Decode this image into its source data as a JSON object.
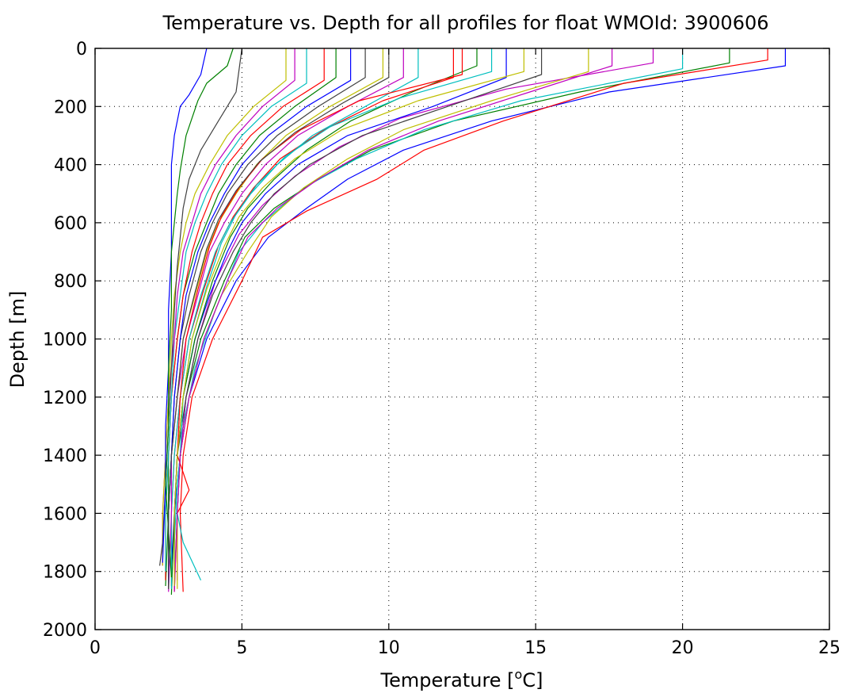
{
  "chart_data": {
    "type": "line",
    "title": "Temperature vs. Depth for all profiles for float WMOId: 3900606",
    "xlabel_text": "Temperature [",
    "xlabel_superscript": "o",
    "xlabel_suffix": "C]",
    "ylabel": "Depth [m]",
    "xlim": [
      0,
      25
    ],
    "ylim": [
      0,
      2000
    ],
    "y_reversed": true,
    "xticks": [
      0,
      5,
      10,
      15,
      20,
      25
    ],
    "yticks": [
      0,
      200,
      400,
      600,
      800,
      1000,
      1200,
      1400,
      1600,
      1800,
      2000
    ],
    "xtick_labels": [
      "0",
      "5",
      "10",
      "15",
      "20",
      "25"
    ],
    "ytick_labels": [
      "0",
      "200",
      "400",
      "600",
      "800",
      "1000",
      "1200",
      "1400",
      "1600",
      "1800",
      "2000"
    ],
    "grid": true,
    "legend": "none",
    "colors": [
      "#0000ff",
      "#008000",
      "#ff0000",
      "#00bfbf",
      "#bf00bf",
      "#bfbf00",
      "#404040"
    ],
    "series": [
      {
        "depth": [
          0,
          60,
          150,
          250,
          350,
          450,
          550,
          650,
          800,
          1000,
          1200,
          1400,
          1600,
          1780
        ],
        "temperature": [
          23.5,
          23.5,
          17.5,
          13.5,
          10.5,
          8.6,
          7.2,
          5.9,
          4.8,
          3.8,
          3.2,
          2.9,
          2.7,
          2.6
        ]
      },
      {
        "depth": [
          0,
          50,
          150,
          250,
          350,
          450,
          550,
          650,
          800,
          1000,
          1200,
          1400,
          1600,
          1840
        ],
        "temperature": [
          21.6,
          21.6,
          16.5,
          12.2,
          9.4,
          7.6,
          6.1,
          5.1,
          4.4,
          3.6,
          3.1,
          2.9,
          2.8,
          2.7
        ]
      },
      {
        "depth": [
          0,
          40,
          120,
          250,
          350,
          450,
          560,
          650,
          800,
          1000,
          1200,
          1400,
          1600,
          1870
        ],
        "temperature": [
          22.9,
          22.9,
          18.0,
          13.9,
          11.2,
          9.6,
          7.2,
          5.7,
          5.0,
          4.0,
          3.3,
          3.0,
          2.9,
          3.0
        ]
      },
      {
        "depth": [
          0,
          70,
          180,
          280,
          380,
          480,
          600,
          700,
          900,
          1100,
          1300,
          1500,
          1700,
          1860
        ],
        "temperature": [
          20.0,
          20.0,
          14.5,
          11.2,
          8.9,
          7.1,
          5.7,
          4.9,
          4.1,
          3.4,
          3.0,
          2.8,
          2.7,
          2.7
        ]
      },
      {
        "depth": [
          0,
          50,
          140,
          240,
          340,
          440,
          540,
          640,
          800,
          1000,
          1200,
          1400,
          1600,
          1830
        ],
        "temperature": [
          19.0,
          19.0,
          14.0,
          10.4,
          8.3,
          6.8,
          5.7,
          4.9,
          4.1,
          3.5,
          3.1,
          2.9,
          2.8,
          2.8
        ]
      },
      {
        "depth": [
          0,
          80,
          180,
          280,
          380,
          480,
          580,
          700,
          850,
          1000,
          1200,
          1400,
          1600,
          1860
        ],
        "temperature": [
          16.8,
          16.8,
          13.5,
          10.5,
          8.6,
          7.1,
          6.0,
          5.2,
          4.3,
          3.7,
          3.2,
          2.9,
          2.8,
          2.8
        ]
      },
      {
        "depth": [
          0,
          90,
          200,
          300,
          400,
          500,
          600,
          700,
          850,
          1000,
          1200,
          1400,
          1600,
          1840
        ],
        "temperature": [
          15.2,
          15.2,
          12.0,
          9.1,
          7.3,
          6.1,
          5.3,
          4.7,
          4.0,
          3.5,
          3.1,
          2.8,
          2.7,
          2.7
        ]
      },
      {
        "depth": [
          0,
          100,
          200,
          300,
          400,
          500,
          600,
          700,
          850,
          1000,
          1200,
          1400,
          1600,
          1820
        ],
        "temperature": [
          14.0,
          14.0,
          11.5,
          8.6,
          6.9,
          5.8,
          5.0,
          4.5,
          3.9,
          3.4,
          3.0,
          2.8,
          2.7,
          2.7
        ]
      },
      {
        "depth": [
          0,
          60,
          150,
          250,
          350,
          450,
          550,
          650,
          800,
          1000,
          1200,
          1400,
          1600,
          1880
        ],
        "temperature": [
          13.0,
          13.0,
          10.8,
          8.7,
          7.2,
          6.1,
          5.2,
          4.6,
          4.0,
          3.4,
          3.0,
          2.8,
          2.7,
          2.6
        ]
      },
      {
        "depth": [
          0,
          100,
          180,
          280,
          380,
          480,
          580,
          680,
          830,
          1000,
          1200,
          1400,
          1600,
          1850
        ],
        "temperature": [
          12.2,
          12.2,
          9.8,
          7.8,
          6.3,
          5.4,
          4.7,
          4.2,
          3.7,
          3.2,
          2.9,
          2.7,
          2.6,
          2.6
        ]
      },
      {
        "depth": [
          0,
          100,
          200,
          300,
          400,
          500,
          600,
          700,
          850,
          1000,
          1200,
          1400,
          1600,
          1860
        ],
        "temperature": [
          11.0,
          11.0,
          9.2,
          7.4,
          6.2,
          5.3,
          4.6,
          4.1,
          3.6,
          3.2,
          2.9,
          2.7,
          2.6,
          2.6
        ]
      },
      {
        "depth": [
          0,
          100,
          200,
          300,
          400,
          500,
          600,
          700,
          850,
          1000,
          1200,
          1400,
          1600,
          1870
        ],
        "temperature": [
          10.5,
          10.5,
          8.6,
          6.9,
          5.8,
          5.0,
          4.4,
          3.9,
          3.5,
          3.1,
          2.8,
          2.6,
          2.6,
          2.5
        ]
      },
      {
        "depth": [
          0,
          100,
          200,
          300,
          400,
          500,
          600,
          700,
          850,
          1000,
          1200,
          1400,
          1600,
          1850
        ],
        "temperature": [
          9.8,
          9.8,
          8.0,
          6.5,
          5.5,
          4.8,
          4.2,
          3.8,
          3.4,
          3.0,
          2.8,
          2.6,
          2.5,
          2.5
        ]
      },
      {
        "depth": [
          0,
          100,
          200,
          300,
          400,
          500,
          600,
          700,
          850,
          1000,
          1200,
          1400,
          1600,
          1860
        ],
        "temperature": [
          9.2,
          9.2,
          7.6,
          6.2,
          5.2,
          4.5,
          4.0,
          3.6,
          3.2,
          2.9,
          2.7,
          2.6,
          2.5,
          2.5
        ]
      },
      {
        "depth": [
          0,
          110,
          200,
          300,
          400,
          500,
          600,
          700,
          850,
          1000,
          1200,
          1400,
          1600,
          1840
        ],
        "temperature": [
          8.7,
          8.7,
          7.2,
          5.9,
          5.0,
          4.4,
          3.9,
          3.5,
          3.1,
          2.9,
          2.7,
          2.6,
          2.5,
          2.5
        ]
      },
      {
        "depth": [
          0,
          100,
          200,
          300,
          400,
          500,
          600,
          700,
          850,
          1000,
          1200,
          1400,
          1600,
          1850
        ],
        "temperature": [
          8.2,
          8.2,
          6.8,
          5.6,
          4.8,
          4.2,
          3.8,
          3.4,
          3.0,
          2.8,
          2.6,
          2.5,
          2.5,
          2.4
        ]
      },
      {
        "depth": [
          0,
          110,
          200,
          300,
          400,
          500,
          600,
          700,
          850,
          1000,
          1200,
          1400,
          1600,
          1830
        ],
        "temperature": [
          7.8,
          7.8,
          6.4,
          5.3,
          4.5,
          4.0,
          3.6,
          3.3,
          3.0,
          2.8,
          2.6,
          2.5,
          2.4,
          2.4
        ]
      },
      {
        "depth": [
          0,
          120,
          200,
          300,
          400,
          500,
          600,
          700,
          850,
          1000,
          1200,
          1400,
          1600,
          1800
        ],
        "temperature": [
          7.2,
          7.2,
          6.0,
          5.0,
          4.3,
          3.8,
          3.4,
          3.1,
          2.9,
          2.7,
          2.6,
          2.5,
          2.4,
          2.4
        ]
      },
      {
        "depth": [
          0,
          110,
          200,
          300,
          400,
          500,
          600,
          700,
          850,
          1000,
          1200,
          1400,
          1600,
          1780
        ],
        "temperature": [
          6.8,
          6.8,
          5.7,
          4.8,
          4.1,
          3.6,
          3.3,
          3.0,
          2.8,
          2.7,
          2.5,
          2.4,
          2.3,
          2.3
        ]
      },
      {
        "depth": [
          0,
          110,
          200,
          300,
          400,
          500,
          600,
          700,
          850,
          1000,
          1200,
          1400,
          1600,
          1780
        ],
        "temperature": [
          6.5,
          6.5,
          5.4,
          4.5,
          3.9,
          3.4,
          3.1,
          2.9,
          2.7,
          2.6,
          2.5,
          2.4,
          2.3,
          2.3
        ]
      },
      {
        "depth": [
          0,
          150,
          250,
          350,
          450,
          550,
          650,
          750,
          900,
          1100,
          1300,
          1500,
          1700,
          1780
        ],
        "temperature": [
          5.0,
          4.8,
          4.2,
          3.6,
          3.2,
          3.0,
          2.9,
          2.8,
          2.7,
          2.6,
          2.5,
          2.4,
          2.3,
          2.2
        ]
      },
      {
        "depth": [
          0,
          90,
          160,
          200,
          300,
          400,
          500,
          600,
          700,
          900,
          1100,
          1300,
          1500,
          1770
        ],
        "temperature": [
          3.8,
          3.6,
          3.2,
          2.9,
          2.7,
          2.6,
          2.6,
          2.6,
          2.6,
          2.5,
          2.5,
          2.4,
          2.4,
          2.3
        ]
      },
      {
        "depth": [
          0,
          60,
          120,
          180,
          300,
          420,
          500,
          600,
          700,
          900,
          1100,
          1300,
          1500,
          1820
        ],
        "temperature": [
          4.7,
          4.5,
          3.8,
          3.5,
          3.1,
          2.9,
          2.8,
          2.7,
          2.6,
          2.6,
          2.5,
          2.5,
          2.4,
          2.6
        ]
      },
      {
        "depth": [
          0,
          90,
          180,
          280,
          380,
          480,
          580,
          680,
          830,
          1000,
          1200,
          1400,
          1520,
          1600,
          1870
        ],
        "temperature": [
          12.5,
          12.5,
          9.0,
          7.0,
          5.7,
          4.9,
          4.3,
          3.9,
          3.5,
          3.1,
          2.9,
          2.8,
          3.2,
          2.8,
          2.7
        ]
      },
      {
        "depth": [
          0,
          80,
          170,
          270,
          370,
          470,
          570,
          670,
          820,
          1000,
          1200,
          1400,
          1600,
          1700,
          1830
        ],
        "temperature": [
          13.5,
          13.5,
          10.4,
          8.0,
          6.5,
          5.5,
          4.8,
          4.3,
          3.8,
          3.3,
          3.0,
          2.9,
          2.8,
          3.0,
          3.6
        ]
      },
      {
        "depth": [
          0,
          60,
          150,
          250,
          350,
          450,
          550,
          650,
          800,
          1000,
          1200,
          1400,
          1600,
          1870
        ],
        "temperature": [
          17.6,
          17.6,
          14.8,
          11.7,
          9.3,
          7.6,
          6.2,
          5.2,
          4.5,
          3.7,
          3.2,
          2.9,
          2.8,
          2.7
        ]
      },
      {
        "depth": [
          0,
          80,
          180,
          280,
          380,
          480,
          580,
          680,
          830,
          1000,
          1200,
          1400,
          1600,
          1850
        ],
        "temperature": [
          14.6,
          14.6,
          11.0,
          8.4,
          6.8,
          5.7,
          4.9,
          4.4,
          3.8,
          3.3,
          3.0,
          2.8,
          2.7,
          2.7
        ]
      },
      {
        "depth": [
          0,
          100,
          190,
          290,
          390,
          490,
          590,
          690,
          840,
          1000,
          1200,
          1400,
          1600,
          1860
        ],
        "temperature": [
          10.0,
          10.0,
          8.4,
          6.8,
          5.6,
          4.8,
          4.2,
          3.8,
          3.4,
          3.0,
          2.8,
          2.6,
          2.5,
          2.5
        ]
      }
    ]
  }
}
